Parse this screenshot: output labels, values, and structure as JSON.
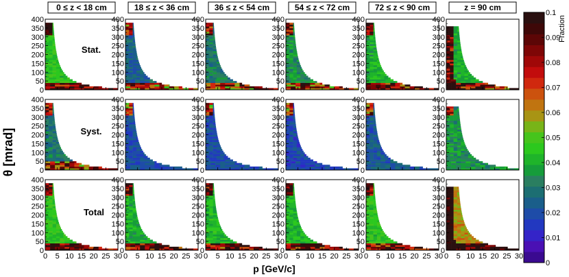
{
  "chart_data": {
    "type": "heatmap",
    "xlabel": "p [GeV/c]",
    "ylabel": "θ [mrad]",
    "xlim": [
      0,
      30
    ],
    "ylim": [
      0,
      400
    ],
    "x_ticks": [
      "0",
      "5",
      "10",
      "15",
      "20",
      "25",
      "30"
    ],
    "y_ticks": [
      "0",
      "50",
      "100",
      "150",
      "200",
      "250",
      "300",
      "350",
      "400"
    ],
    "columns": [
      "0 ≤ z < 18 cm",
      "18 ≤ z < 36 cm",
      "36 ≤ z < 54 cm",
      "54 ≤ z < 72 cm",
      "72 ≤ z < 90 cm",
      "z = 90 cm"
    ],
    "rows": [
      "Stat.",
      "Syst.",
      "Total"
    ],
    "colorbar": {
      "title": "Fraction",
      "range": [
        0,
        0.1
      ],
      "ticks": [
        "0",
        "0.01",
        "0.02",
        "0.03",
        "0.04",
        "0.05",
        "0.06",
        "0.07",
        "0.08",
        "0.09",
        "0.1"
      ],
      "colors": [
        "#3a0a90",
        "#4a10b4",
        "#3424c8",
        "#2238c0",
        "#1e4ca8",
        "#1a5e8a",
        "#1c6e72",
        "#2a7e60",
        "#169c3a",
        "#1fb42a",
        "#2cc81e",
        "#46c41c",
        "#78b418",
        "#a89414",
        "#c07410",
        "#cc520e",
        "#d0280e",
        "#c20c0c",
        "#a00808",
        "#7e0606",
        "#5c0606",
        "#3e0808",
        "#2a1010"
      ]
    },
    "grid": false,
    "cell_values_approx": {
      "Stat.": [
        0.045,
        0.025,
        0.03,
        0.035,
        0.04,
        0.04
      ],
      "Syst.": [
        0.03,
        0.02,
        0.02,
        0.018,
        0.022,
        0.035
      ],
      "Total": [
        0.045,
        0.04,
        0.042,
        0.042,
        0.045,
        0.06
      ]
    }
  }
}
